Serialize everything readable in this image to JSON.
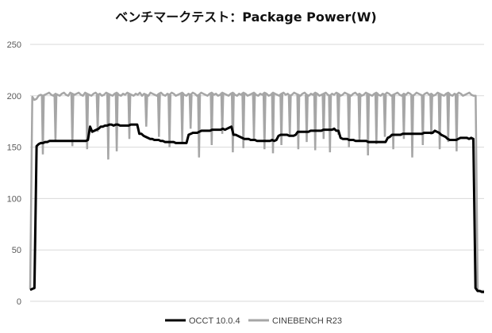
{
  "chart_data": {
    "type": "line",
    "title": "ベンチマークテスト：Package Power(W)",
    "xlabel": "",
    "ylabel": "",
    "ylim": [
      0,
      250
    ],
    "yticks": [
      0,
      50,
      100,
      150,
      200,
      250
    ],
    "grid": true,
    "legend_position": "bottom",
    "series": [
      {
        "name": "OCCT 10.0.4",
        "color": "#000000",
        "values": [
          11,
          12,
          13,
          151,
          153,
          154,
          154,
          155,
          155,
          156,
          156,
          156,
          156,
          156,
          156,
          156,
          156,
          156,
          156,
          156,
          156,
          156,
          156,
          156,
          156,
          156,
          156,
          157,
          170,
          165,
          166,
          167,
          168,
          170,
          170,
          171,
          171,
          172,
          172,
          171,
          172,
          172,
          171,
          171,
          171,
          171,
          171,
          172,
          172,
          172,
          172,
          163,
          163,
          161,
          160,
          159,
          158,
          158,
          157,
          157,
          157,
          156,
          156,
          155,
          155,
          155,
          155,
          155,
          154,
          154,
          154,
          154,
          154,
          154,
          162,
          163,
          164,
          164,
          164,
          165,
          166,
          166,
          166,
          166,
          166,
          167,
          167,
          167,
          167,
          167,
          168,
          167,
          168,
          169,
          170,
          162,
          162,
          161,
          160,
          159,
          158,
          158,
          158,
          157,
          157,
          157,
          156,
          156,
          156,
          156,
          156,
          156,
          156,
          157,
          156,
          157,
          161,
          162,
          162,
          162,
          162,
          161,
          161,
          161,
          162,
          165,
          165,
          165,
          165,
          165,
          165,
          166,
          166,
          166,
          166,
          166,
          166,
          167,
          167,
          167,
          167,
          167,
          168,
          166,
          166,
          159,
          158,
          158,
          158,
          157,
          157,
          157,
          156,
          156,
          156,
          156,
          156,
          156,
          155,
          155,
          155,
          155,
          155,
          155,
          155,
          155,
          155,
          159,
          160,
          162,
          162,
          162,
          162,
          162,
          163,
          163,
          163,
          163,
          163,
          163,
          163,
          163,
          163,
          163,
          164,
          164,
          164,
          164,
          164,
          166,
          165,
          164,
          162,
          161,
          160,
          158,
          157,
          157,
          157,
          157,
          158,
          159,
          159,
          159,
          159,
          158,
          159,
          158,
          13,
          10,
          10,
          9,
          9
        ]
      },
      {
        "name": "CINEBENCH R23",
        "color": "#a6a6a6",
        "values": [
          12,
          199,
          196,
          197,
          200,
          201,
          200,
          201,
          202,
          203,
          201,
          200,
          202,
          201,
          200,
          202,
          203,
          201,
          200,
          203,
          202,
          201,
          202,
          203,
          201,
          200,
          203,
          202,
          201,
          200,
          202,
          203,
          201,
          202,
          200,
          201,
          203,
          202,
          201,
          200,
          202,
          203,
          201,
          200,
          202,
          201,
          203,
          202,
          201,
          200,
          202,
          201,
          203,
          200,
          202,
          201,
          200,
          203,
          202,
          201,
          200,
          202,
          203,
          201,
          200,
          202,
          201,
          203,
          202,
          200,
          201,
          202,
          203,
          201,
          200,
          202,
          201,
          203,
          202,
          200,
          201,
          203,
          202,
          201,
          200,
          202,
          203,
          201,
          202,
          200,
          201,
          203,
          202,
          201,
          200,
          202,
          203,
          201,
          200,
          202,
          201,
          203,
          202,
          200,
          201,
          202,
          203,
          201,
          200,
          202,
          201,
          203,
          202,
          200,
          201,
          203,
          202,
          201,
          200,
          202,
          203,
          201,
          202,
          200,
          201,
          203,
          202,
          201,
          200,
          202,
          203,
          201,
          200,
          202,
          201,
          203,
          202,
          200,
          201,
          202,
          203,
          201,
          200,
          202,
          201,
          203,
          202,
          200,
          201,
          203,
          202,
          201,
          200,
          202,
          203,
          201,
          202,
          200,
          201,
          203,
          202,
          201,
          200,
          202,
          203,
          201,
          200,
          202,
          201,
          203,
          202,
          200,
          201,
          202,
          203,
          201,
          200,
          202,
          201,
          203,
          202,
          200,
          201,
          203,
          202,
          201,
          200,
          202,
          203,
          201,
          202,
          200,
          201,
          203,
          202,
          201,
          200,
          202,
          203,
          201,
          200,
          202,
          201,
          203,
          202,
          200,
          201,
          202,
          203,
          201,
          200,
          200,
          10,
          10,
          10,
          10
        ],
        "dips": [
          {
            "i": 6,
            "v": 143
          },
          {
            "i": 12,
            "v": 156
          },
          {
            "i": 20,
            "v": 151
          },
          {
            "i": 27,
            "v": 148
          },
          {
            "i": 32,
            "v": 165
          },
          {
            "i": 37,
            "v": 138
          },
          {
            "i": 41,
            "v": 146
          },
          {
            "i": 47,
            "v": 158
          },
          {
            "i": 55,
            "v": 170
          },
          {
            "i": 61,
            "v": 160
          },
          {
            "i": 66,
            "v": 150
          },
          {
            "i": 72,
            "v": 155
          },
          {
            "i": 76,
            "v": 168
          },
          {
            "i": 80,
            "v": 140
          },
          {
            "i": 86,
            "v": 152
          },
          {
            "i": 91,
            "v": 163
          },
          {
            "i": 96,
            "v": 145
          },
          {
            "i": 101,
            "v": 149
          },
          {
            "i": 106,
            "v": 158
          },
          {
            "i": 111,
            "v": 148
          },
          {
            "i": 115,
            "v": 144
          },
          {
            "i": 119,
            "v": 152
          },
          {
            "i": 123,
            "v": 160
          },
          {
            "i": 127,
            "v": 148
          },
          {
            "i": 131,
            "v": 155
          },
          {
            "i": 135,
            "v": 147
          },
          {
            "i": 139,
            "v": 158
          },
          {
            "i": 142,
            "v": 145
          },
          {
            "i": 146,
            "v": 162
          },
          {
            "i": 151,
            "v": 150
          },
          {
            "i": 156,
            "v": 157
          },
          {
            "i": 160,
            "v": 142
          },
          {
            "i": 164,
            "v": 153
          },
          {
            "i": 168,
            "v": 160
          },
          {
            "i": 172,
            "v": 148
          },
          {
            "i": 177,
            "v": 158
          },
          {
            "i": 181,
            "v": 140
          },
          {
            "i": 186,
            "v": 152
          },
          {
            "i": 190,
            "v": 162
          },
          {
            "i": 194,
            "v": 148
          },
          {
            "i": 198,
            "v": 155
          },
          {
            "i": 202,
            "v": 146
          }
        ]
      }
    ]
  }
}
